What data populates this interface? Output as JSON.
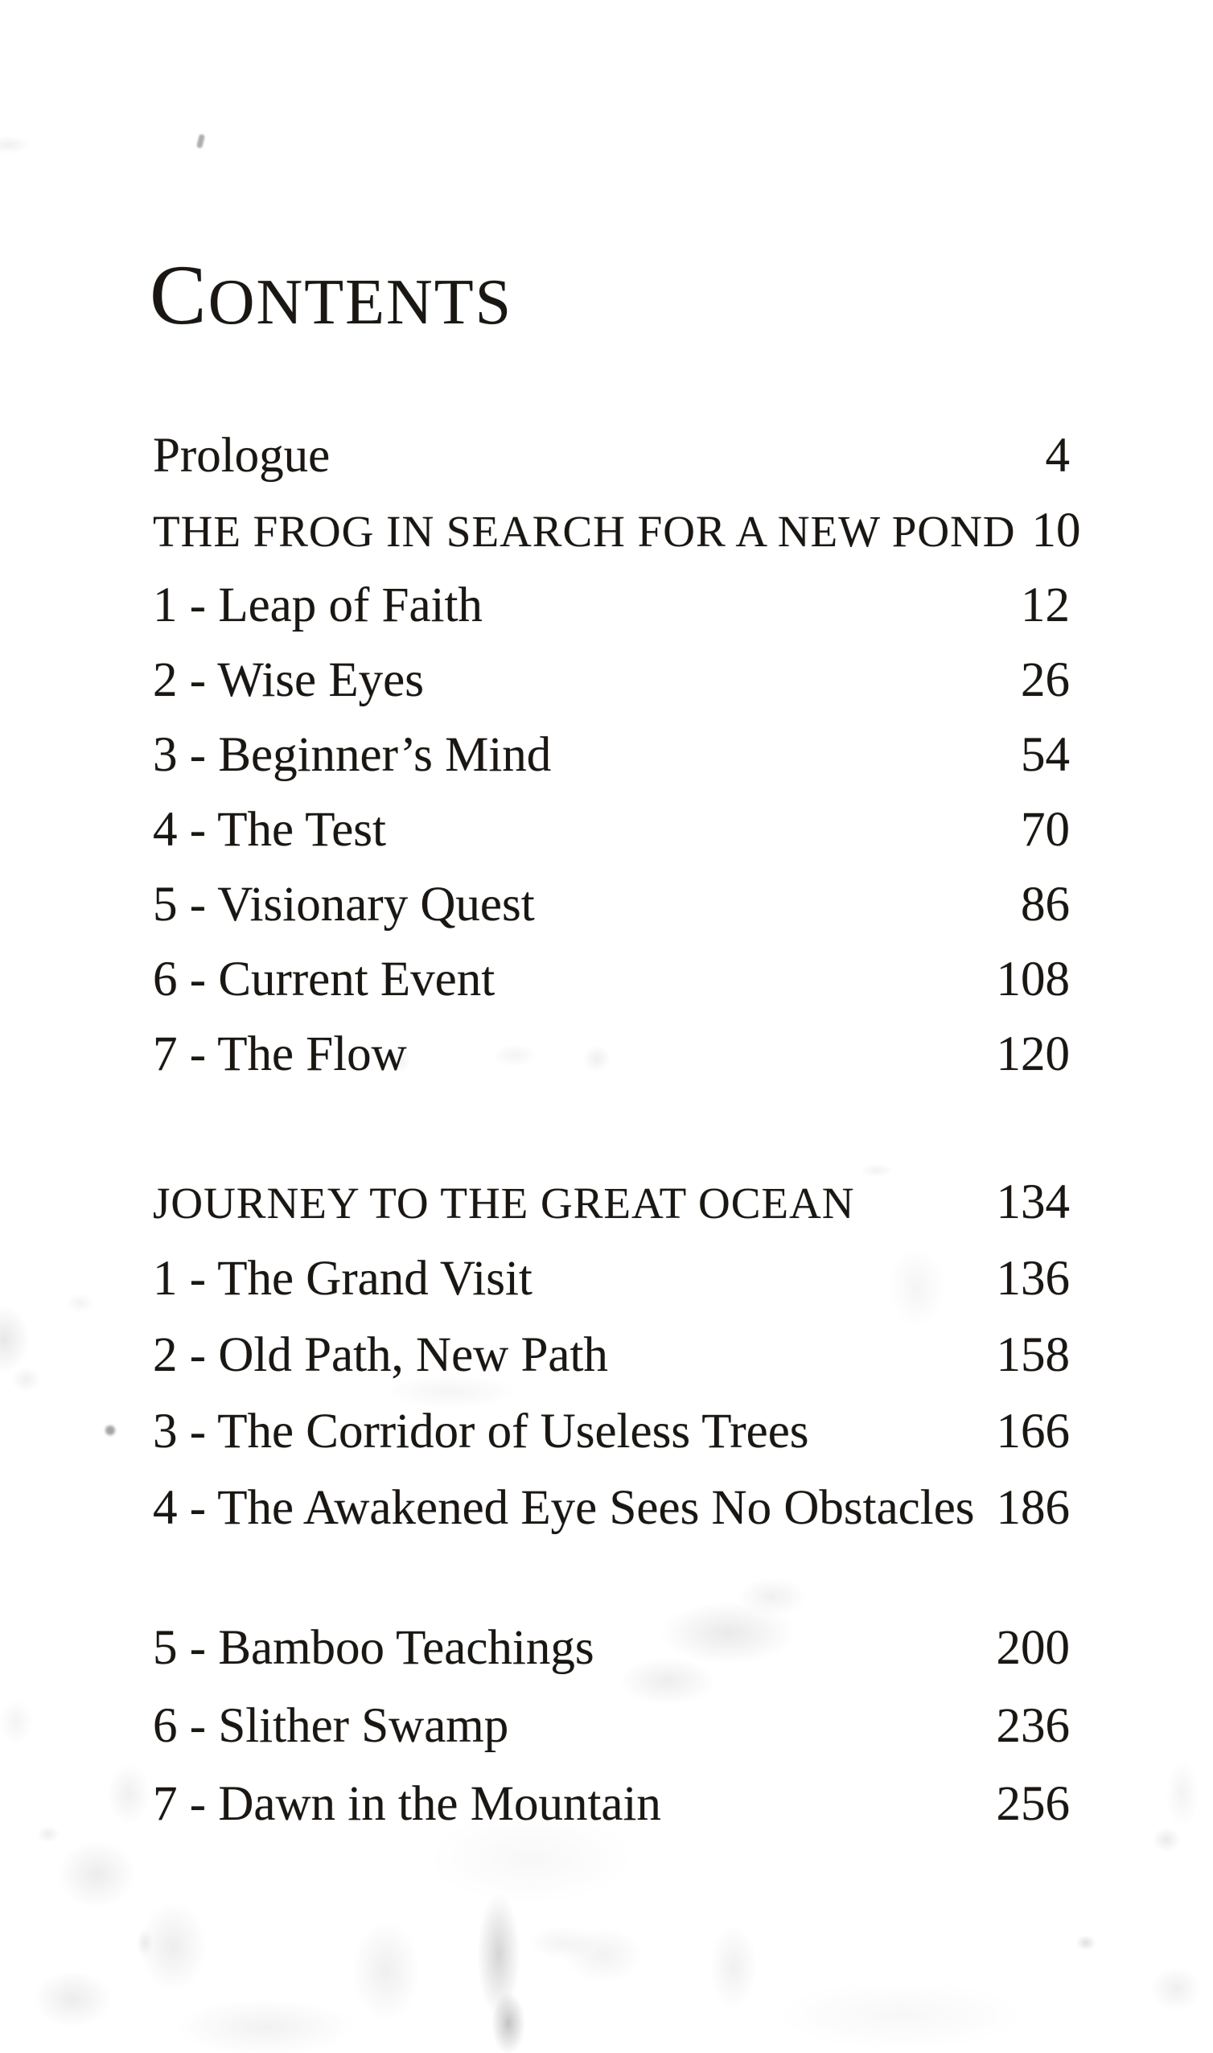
{
  "page": {
    "kind": "book-contents-scan",
    "title_initial": "C",
    "title_rest": "ONTENTS",
    "colors": {
      "paper": "#ffffff",
      "ink": "#1a1713"
    }
  },
  "toc": {
    "groups": [
      {
        "rows": [
          {
            "label": "Prologue",
            "page": "4"
          },
          {
            "label": "THE FROG IN SEARCH FOR A NEW POND",
            "page": "10"
          },
          {
            "label": "1 - Leap of Faith",
            "page": "12"
          },
          {
            "label": "2 - Wise Eyes",
            "page": "26"
          },
          {
            "label": "3 - Beginner’s Mind",
            "page": "54"
          },
          {
            "label": "4 - The Test",
            "page": "70"
          },
          {
            "label": "5 - Visionary Quest",
            "page": "86"
          },
          {
            "label": "6 - Current Event",
            "page": "108"
          },
          {
            "label": "7 - The Flow",
            "page": "120"
          }
        ]
      },
      {
        "rows": [
          {
            "label": "JOURNEY TO THE GREAT OCEAN",
            "page": "134"
          },
          {
            "label": "1 - The Grand Visit",
            "page": "136"
          },
          {
            "label": "2 - Old Path, New Path",
            "page": "158"
          },
          {
            "label": "3 - The Corridor of Useless Trees",
            "page": "166"
          },
          {
            "label": "4 - The Awakened Eye Sees No Obstacles",
            "page": "186"
          }
        ]
      },
      {
        "rows": [
          {
            "label": "5 - Bamboo Teachings",
            "page": "200"
          },
          {
            "label": "6 - Slither Swamp",
            "page": "236"
          },
          {
            "label": "7 - Dawn in the Mountain",
            "page": "256"
          }
        ]
      }
    ]
  }
}
